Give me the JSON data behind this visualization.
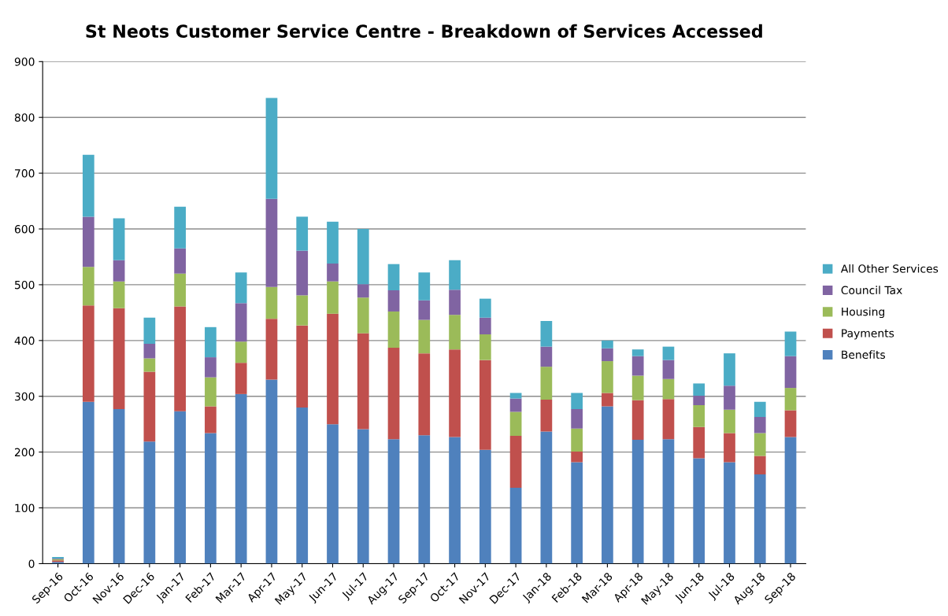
{
  "chart_data": {
    "type": "bar",
    "title": "St Neots Customer Service Centre - Breakdown of Services Accessed",
    "stacked": true,
    "grid": "y",
    "legend": "right",
    "categories": [
      "Sep-16",
      "Oct-16",
      "Nov-16",
      "Dec-16",
      "Jan-17",
      "Feb-17",
      "Mar-17",
      "Apr-17",
      "May-17",
      "Jun-17",
      "Jul-17",
      "Aug-17",
      "Sep-17",
      "Oct-17",
      "Nov-17",
      "Dec-17",
      "Jan-18",
      "Feb-18",
      "Mar-18",
      "Apr-18",
      "May-18",
      "Jun-18",
      "Jul-18",
      "Aug-18",
      "Sep-18"
    ],
    "ylim": [
      0,
      900
    ],
    "yticks": [
      0,
      100,
      200,
      300,
      400,
      500,
      600,
      700,
      800,
      900
    ],
    "series": [
      {
        "name": "Benefits",
        "color": "#4f81bd",
        "values": [
          3,
          290,
          277,
          219,
          273,
          234,
          304,
          330,
          280,
          250,
          241,
          223,
          230,
          227,
          204,
          136,
          237,
          182,
          282,
          222,
          223,
          189,
          182,
          160,
          227
        ]
      },
      {
        "name": "Payments",
        "color": "#c0504d",
        "values": [
          3,
          173,
          181,
          125,
          188,
          48,
          56,
          109,
          147,
          198,
          172,
          164,
          147,
          157,
          161,
          93,
          57,
          19,
          24,
          71,
          72,
          56,
          52,
          33,
          48
        ]
      },
      {
        "name": "Housing",
        "color": "#9bbb59",
        "values": [
          2,
          69,
          48,
          24,
          59,
          52,
          38,
          57,
          54,
          58,
          64,
          65,
          60,
          62,
          46,
          43,
          59,
          41,
          57,
          44,
          36,
          39,
          42,
          41,
          40
        ]
      },
      {
        "name": "Council Tax",
        "color": "#8064a2",
        "values": [
          1,
          90,
          38,
          26,
          45,
          36,
          69,
          158,
          80,
          32,
          24,
          38,
          35,
          45,
          30,
          24,
          36,
          35,
          23,
          35,
          34,
          17,
          43,
          29,
          57
        ]
      },
      {
        "name": "All Other Services",
        "color": "#4bacc6",
        "values": [
          3,
          111,
          75,
          47,
          75,
          54,
          55,
          181,
          61,
          75,
          99,
          47,
          50,
          53,
          34,
          10,
          46,
          29,
          14,
          12,
          24,
          22,
          58,
          27,
          44
        ]
      }
    ]
  }
}
